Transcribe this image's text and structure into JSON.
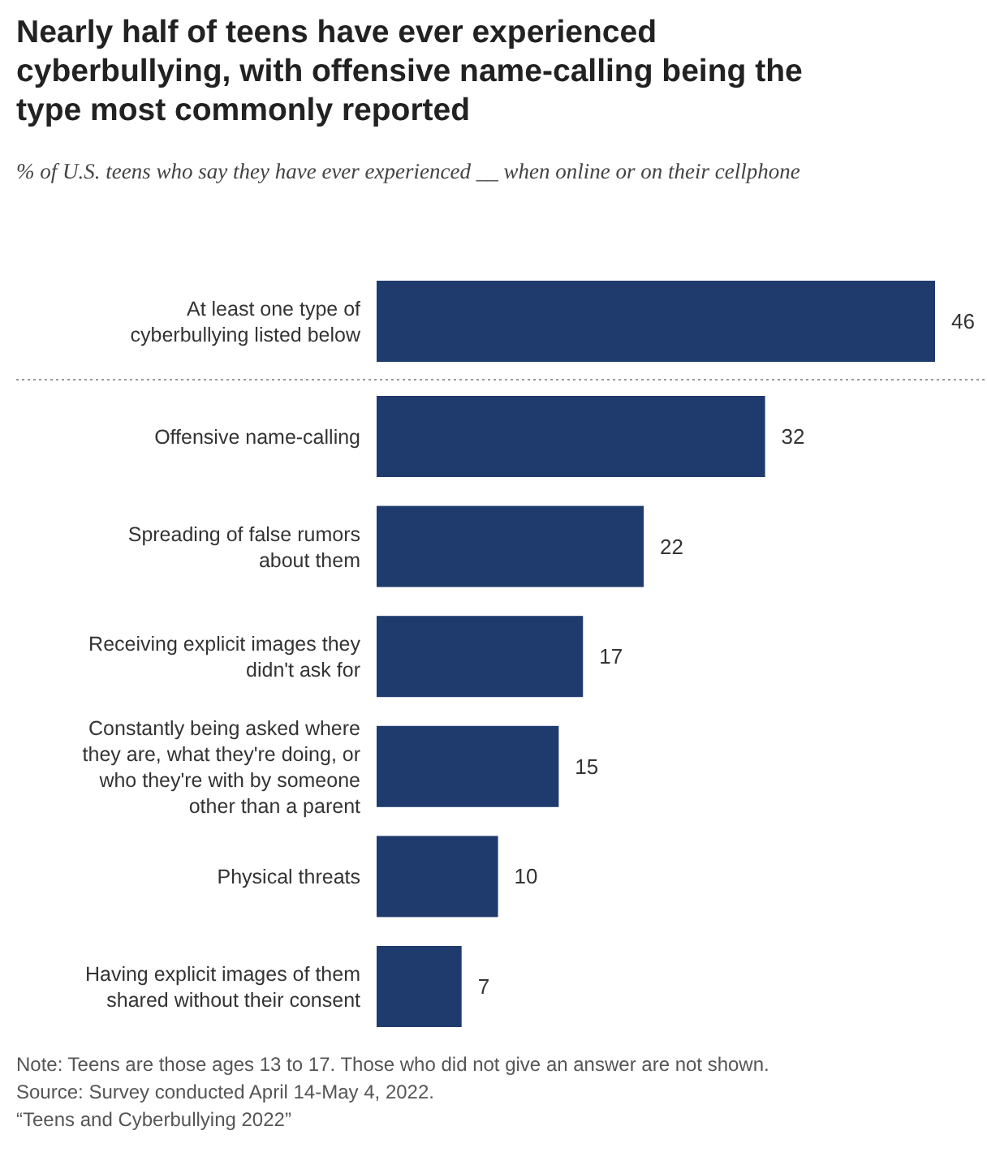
{
  "chart_data": {
    "type": "bar",
    "orientation": "horizontal",
    "title": "Nearly half of teens have ever experienced cyberbullying, with offensive name-calling being the type most commonly reported",
    "subtitle": "% of U.S. teens who say they have ever experienced __ when online or on their cellphone",
    "categories": [
      "At least one type of cyberbullying listed below",
      "Offensive name-calling",
      "Spreading of false rumors about them",
      "Receiving explicit images they didn't ask for",
      "Constantly being asked where they are, what they're doing, or who they're with by someone other than a parent",
      "Physical threats",
      "Having explicit images of them shared without their consent"
    ],
    "values": [
      46,
      32,
      22,
      17,
      15,
      10,
      7
    ],
    "color": "#1f3b6e",
    "data_labels": true,
    "annotations": [
      "Note: Teens are those ages 13 to 17. Those who did not give an answer are not shown.",
      "Source: Survey conducted April 14-May 4, 2022.",
      "“Teens and Cyberbullying 2022”"
    ]
  }
}
